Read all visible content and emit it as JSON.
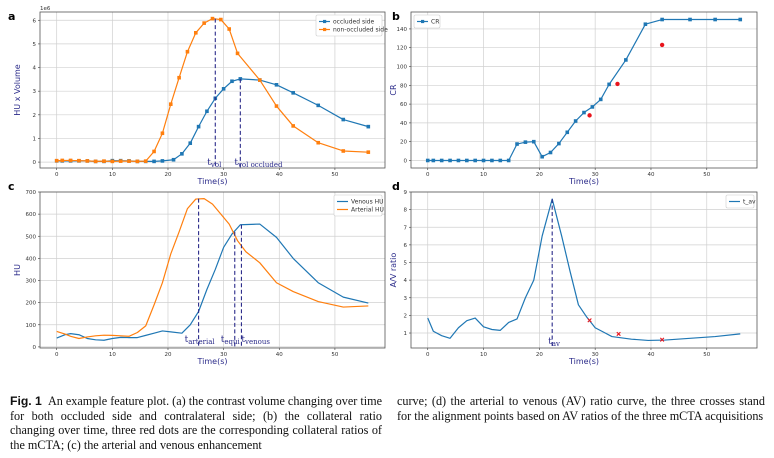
{
  "figure": {
    "caption_label": "Fig. 1",
    "caption_left": "An example feature plot. (a) the contrast volume changing over time for both occluded side and contralateral side; (b) the collateral ratio changing over time, three red dots are the corresponding collateral ratios of the mCTA; (c) the arterial and venous enhancement",
    "caption_right": "curve; (d) the arterial to venous (AV) ratio curve, the three crosses stand for the alignment points based on AV ratios of the three mCTA acquisitions"
  },
  "colors": {
    "blue": "#1f77b4",
    "orange": "#ff7f0e",
    "red": "#e8141c",
    "annotation": "#2b2b8a",
    "grid": "#d0d0d0"
  },
  "chart_data": [
    {
      "panel": "a",
      "type": "line",
      "title": "",
      "xlabel": "Time(s)",
      "ylabel": "HU x Volume",
      "y_offset_label": "1e6",
      "xlim": [
        -3,
        59
      ],
      "ylim": [
        -0.25,
        6.35
      ],
      "xticks": [
        0,
        10,
        20,
        30,
        40,
        50
      ],
      "yticks": [
        0,
        1,
        2,
        3,
        4,
        5,
        6
      ],
      "grid": true,
      "legend": "top-right",
      "series": [
        {
          "name": "occluded side",
          "color": "blue",
          "marker": "square",
          "x": [
            0,
            1,
            2.5,
            4,
            5.5,
            7,
            8.5,
            10,
            11.5,
            13,
            14.5,
            16,
            17.5,
            19,
            21,
            22.5,
            24,
            25.5,
            27,
            28.5,
            30,
            31.5,
            33,
            36.5,
            39.5,
            42.5,
            47,
            51.5,
            56
          ],
          "y": [
            0.05,
            0.05,
            0.05,
            0.05,
            0.05,
            0.03,
            0.03,
            0.06,
            0.06,
            0.05,
            0.03,
            0.03,
            0.03,
            0.05,
            0.1,
            0.35,
            0.8,
            1.5,
            2.15,
            2.7,
            3.1,
            3.42,
            3.52,
            3.47,
            3.27,
            2.93,
            2.4,
            1.8,
            1.5
          ]
        },
        {
          "name": "non-occluded side",
          "color": "orange",
          "marker": "square",
          "x": [
            0,
            1,
            2.5,
            4,
            5.5,
            7,
            8.5,
            10,
            11.5,
            13,
            14.5,
            16,
            17.5,
            19,
            20.5,
            22,
            23.5,
            25,
            26.5,
            28,
            29.5,
            31,
            32.5,
            36.5,
            39.5,
            42.5,
            47,
            51.5,
            56
          ],
          "y": [
            0.06,
            0.07,
            0.07,
            0.06,
            0.05,
            0.03,
            0.04,
            0.03,
            0.04,
            0.04,
            0.03,
            0.04,
            0.45,
            1.22,
            2.45,
            3.57,
            4.67,
            5.47,
            5.88,
            6.07,
            6.03,
            5.63,
            4.6,
            3.47,
            2.37,
            1.53,
            0.82,
            0.47,
            0.42
          ]
        }
      ],
      "annotations": [
        {
          "text": "t",
          "sub": "vol",
          "x": 28.5
        },
        {
          "text": "t",
          "sub": "vol_occluded",
          "x": 33
        }
      ]
    },
    {
      "panel": "b",
      "type": "line",
      "title": "",
      "xlabel": "Time(s)",
      "ylabel": "CR",
      "xlim": [
        -3,
        59
      ],
      "ylim": [
        -8,
        158
      ],
      "xticks": [
        0,
        10,
        20,
        30,
        40,
        50
      ],
      "yticks": [
        0,
        20,
        40,
        60,
        80,
        100,
        120,
        140
      ],
      "grid": true,
      "legend": "top-left",
      "series": [
        {
          "name": "CR",
          "color": "blue",
          "marker": "square",
          "x": [
            0,
            1,
            2.5,
            4,
            5.5,
            7,
            8.5,
            10,
            11.5,
            13,
            14.5,
            16,
            17.5,
            19,
            20.5,
            22,
            23.5,
            25,
            26.5,
            28,
            29.5,
            31,
            32.5,
            35.5,
            39,
            42,
            47,
            51.5,
            56
          ],
          "y": [
            0,
            0,
            0,
            0,
            0,
            0,
            0,
            0,
            0,
            0,
            0,
            17.5,
            19.5,
            20,
            4,
            8.5,
            18,
            30,
            42,
            51,
            57,
            65,
            81,
            107,
            145,
            150,
            150,
            150,
            150
          ]
        },
        {
          "name": "mCTA collateral ratios",
          "color": "red",
          "marker": "dot",
          "x": [
            29,
            34,
            42
          ],
          "y": [
            48,
            81.5,
            123
          ]
        }
      ]
    },
    {
      "panel": "c",
      "type": "line",
      "title": "",
      "xlabel": "Time(s)",
      "ylabel": "HU",
      "xlim": [
        -3,
        59
      ],
      "ylim": [
        -5,
        700
      ],
      "xticks": [
        0,
        10,
        20,
        30,
        40,
        50
      ],
      "yticks": [
        0,
        100,
        200,
        300,
        400,
        500,
        600,
        700
      ],
      "grid": true,
      "legend": "top-right",
      "series": [
        {
          "name": "Venous HU",
          "color": "blue",
          "x": [
            0,
            1.5,
            2.5,
            4,
            5.5,
            7,
            8.5,
            10,
            11.5,
            13,
            14.5,
            16,
            17.5,
            19,
            20.5,
            22.5,
            24,
            25.5,
            27,
            28.5,
            30,
            31.5,
            33,
            36.5,
            39.5,
            42.5,
            47,
            51.5,
            56
          ],
          "y": [
            40,
            55,
            60,
            55,
            38,
            32,
            30,
            38,
            43,
            42,
            42,
            52,
            62,
            72,
            68,
            62,
            100,
            160,
            260,
            350,
            450,
            510,
            552,
            555,
            495,
            400,
            290,
            225,
            198
          ]
        },
        {
          "name": "Arterial HU",
          "color": "orange",
          "x": [
            0,
            1.5,
            2.5,
            4,
            5.5,
            7,
            8.5,
            10,
            11.5,
            13,
            14.5,
            16,
            17.5,
            19,
            20.5,
            22,
            23.5,
            25,
            26.5,
            28,
            29.5,
            31,
            32.5,
            34,
            36.5,
            39.5,
            42.5,
            47,
            51.5,
            56
          ],
          "y": [
            70,
            58,
            48,
            38,
            45,
            50,
            53,
            52,
            50,
            48,
            65,
            95,
            190,
            290,
            420,
            520,
            625,
            668,
            670,
            645,
            600,
            555,
            480,
            430,
            380,
            290,
            250,
            205,
            180,
            185
          ]
        }
      ],
      "annotations": [
        {
          "text": "t",
          "sub": "arterial",
          "x": 25.5
        },
        {
          "text": "t",
          "sub": "equi",
          "x": 32
        },
        {
          "text": "t",
          "sub": "venous",
          "x": 33.2
        }
      ]
    },
    {
      "panel": "d",
      "type": "line",
      "title": "",
      "xlabel": "Time(s)",
      "ylabel": "A/V ratio",
      "xlim": [
        -3,
        59
      ],
      "ylim": [
        0.15,
        9
      ],
      "xticks": [
        0,
        10,
        20,
        30,
        40,
        50
      ],
      "yticks": [
        1,
        2,
        3,
        4,
        5,
        6,
        7,
        8,
        9
      ],
      "grid": true,
      "legend": "top-right",
      "series": [
        {
          "name": "t_av",
          "color": "blue",
          "x": [
            0,
            1,
            2.5,
            4,
            5.5,
            7,
            8.5,
            10,
            11.5,
            13,
            14.5,
            16,
            17.5,
            19,
            20.5,
            22.3,
            24,
            25.5,
            27,
            28.5,
            30,
            31.5,
            33,
            36.5,
            39.5,
            42.5,
            47,
            51.5,
            56
          ],
          "y": [
            1.85,
            1.1,
            0.85,
            0.7,
            1.3,
            1.7,
            1.85,
            1.35,
            1.2,
            1.15,
            1.6,
            1.8,
            3.0,
            4.0,
            6.5,
            8.6,
            6.5,
            4.5,
            2.6,
            1.9,
            1.3,
            1.05,
            0.8,
            0.65,
            0.58,
            0.6,
            0.7,
            0.8,
            0.95
          ]
        },
        {
          "name": "alignment points",
          "color": "red",
          "marker": "x",
          "x": [
            29,
            34.2,
            42
          ],
          "y": [
            1.72,
            0.95,
            0.62
          ]
        }
      ],
      "annotations": [
        {
          "text": "t",
          "sub": "av",
          "x": 22.3
        }
      ]
    }
  ]
}
